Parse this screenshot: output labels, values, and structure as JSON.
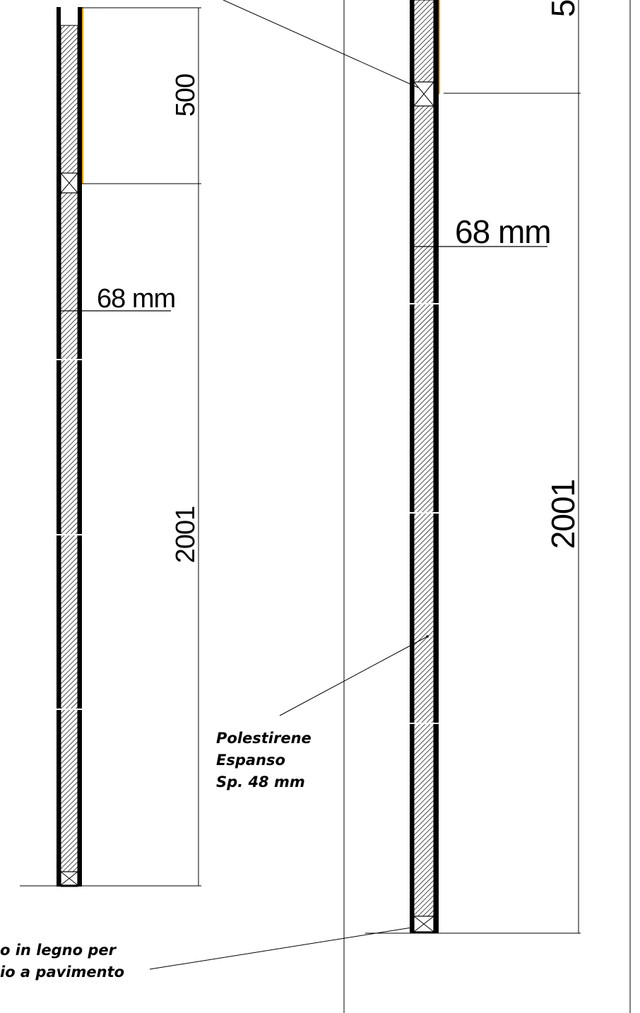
{
  "drawing": {
    "left_section": {
      "dim_top": "500",
      "dim_bottom": "2001",
      "thickness_label": "68 mm"
    },
    "right_section": {
      "dim_top_partial": "5",
      "dim_bottom": "2001",
      "thickness_label": "68 mm"
    },
    "notes": {
      "insulation_line1": "Polestirene",
      "insulation_line2": "Espanso",
      "insulation_line3": "Sp. 48 mm",
      "floor_line1": "o in legno per",
      "floor_line2": "io a pavimento"
    },
    "colors": {
      "line": "#000000",
      "accent_edge": "#e8a400",
      "hatch": "#000000",
      "background": "#ffffff"
    }
  }
}
